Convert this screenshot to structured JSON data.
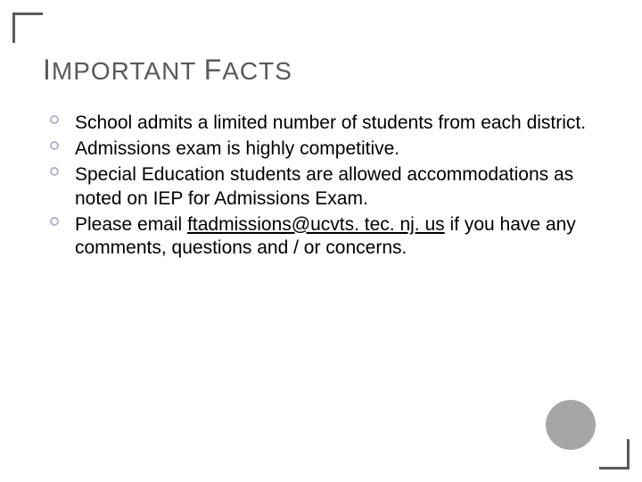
{
  "slide": {
    "title_parts": [
      "I",
      "MPORTANT ",
      "F",
      "ACTS"
    ],
    "facts": [
      {
        "text_before": "School admits a limited number of students from each district.",
        "link": "",
        "text_after": ""
      },
      {
        "text_before": "Admissions exam is highly competitive.",
        "link": "",
        "text_after": ""
      },
      {
        "text_before": "Special Education students are allowed accommodations as noted on IEP for Admissions Exam.",
        "link": "",
        "text_after": ""
      },
      {
        "text_before": "Please email ",
        "link": "ftadmissions@ucvts. tec. nj. us",
        "text_after": " if you have any comments, questions and / or concerns."
      }
    ]
  },
  "style": {
    "accent_color": "#595959",
    "bullet_border_color": "#b7b3cc",
    "circle_color": "#a6a6a6",
    "background_color": "#ffffff",
    "title_color": "#595959",
    "body_color": "#000000",
    "title_fontsize_small": 28,
    "title_fontsize_cap": 32,
    "body_fontsize": 21
  }
}
